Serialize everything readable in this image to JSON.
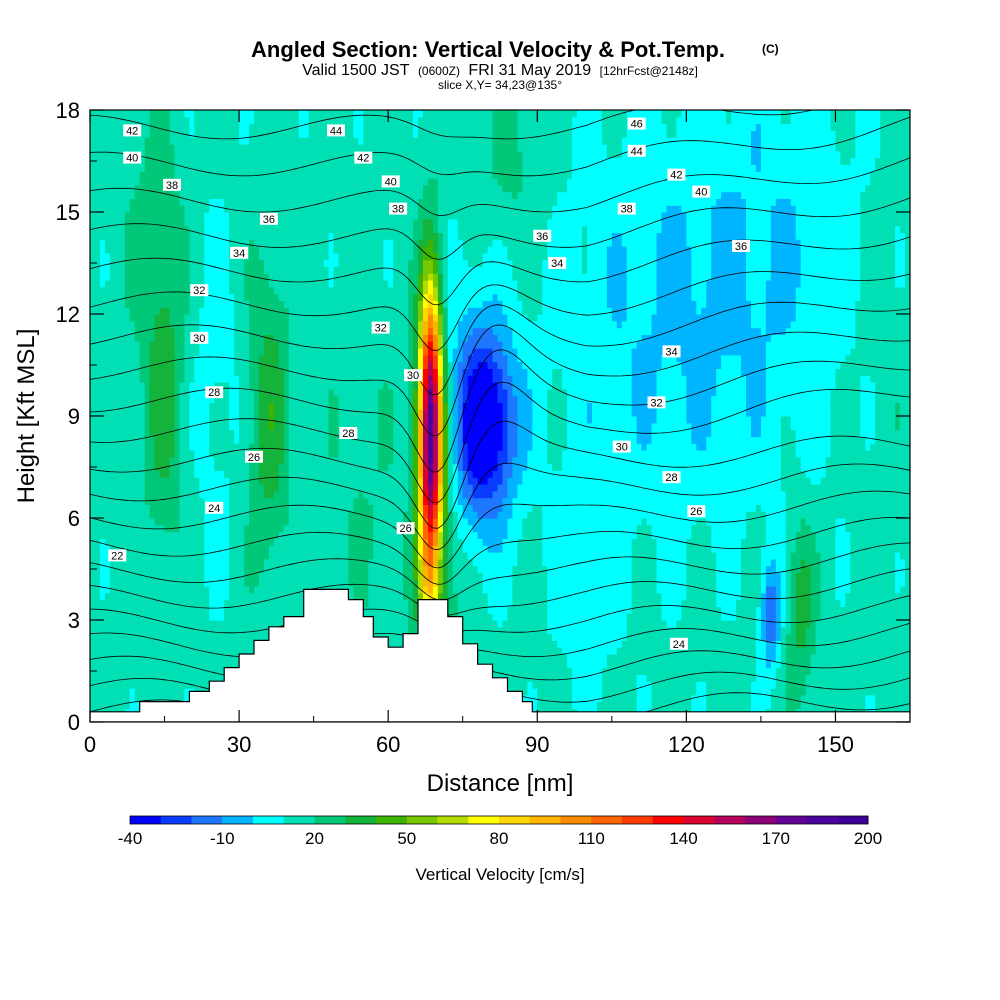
{
  "chart_data": {
    "type": "heatmap",
    "title": "Angled Section: Vertical Velocity & Pot.Temp.",
    "title_suffix": "(C)",
    "subtitle_parts": [
      "Valid 1500 JST",
      "(0600Z)",
      "FRI 31 May 2019",
      "[12hrFcst@2148z]"
    ],
    "slice_text": "slice X,Y= 34,23@135°",
    "xlabel": "Distance [nm]",
    "ylabel": "Height [Kft MSL]",
    "xlim": [
      0,
      165
    ],
    "ylim": [
      0,
      18
    ],
    "x_ticks": [
      0,
      30,
      60,
      90,
      120,
      150
    ],
    "y_ticks": [
      0,
      3,
      6,
      9,
      12,
      15,
      18
    ],
    "colorbar": {
      "label": "Vertical Velocity [cm/s]",
      "min": -40,
      "max": 200,
      "step": 10,
      "ticks": [
        -40,
        -10,
        20,
        50,
        80,
        110,
        140,
        170,
        200
      ],
      "colors": [
        "#0000ff",
        "#0a3cff",
        "#1e78ff",
        "#00b4ff",
        "#00ffff",
        "#00e0b4",
        "#00c878",
        "#14b43c",
        "#3cb400",
        "#78c800",
        "#b4dc00",
        "#ffff00",
        "#ffd700",
        "#ffb400",
        "#ff8c00",
        "#ff6400",
        "#ff3c00",
        "#ff0000",
        "#dc0032",
        "#b4005a",
        "#8c0078",
        "#640096",
        "#4b00a0",
        "#3c0096"
      ]
    },
    "terrain": [
      [
        0,
        0.3
      ],
      [
        10,
        0.3
      ],
      [
        10,
        0.6
      ],
      [
        20,
        0.6
      ],
      [
        20,
        0.9
      ],
      [
        24,
        0.9
      ],
      [
        24,
        1.2
      ],
      [
        27,
        1.2
      ],
      [
        27,
        1.6
      ],
      [
        30,
        1.6
      ],
      [
        30,
        2.0
      ],
      [
        33,
        2.0
      ],
      [
        33,
        2.4
      ],
      [
        36,
        2.4
      ],
      [
        36,
        2.8
      ],
      [
        39,
        2.8
      ],
      [
        39,
        3.1
      ],
      [
        43,
        3.1
      ],
      [
        43,
        3.9
      ],
      [
        52,
        3.9
      ],
      [
        52,
        3.6
      ],
      [
        55,
        3.6
      ],
      [
        55,
        3.1
      ],
      [
        57,
        3.1
      ],
      [
        57,
        2.5
      ],
      [
        60,
        2.5
      ],
      [
        60,
        2.2
      ],
      [
        63,
        2.2
      ],
      [
        63,
        2.6
      ],
      [
        66,
        2.6
      ],
      [
        66,
        3.6
      ],
      [
        72,
        3.6
      ],
      [
        72,
        3.1
      ],
      [
        75,
        3.1
      ],
      [
        75,
        2.3
      ],
      [
        78,
        2.3
      ],
      [
        78,
        1.7
      ],
      [
        81,
        1.7
      ],
      [
        81,
        1.3
      ],
      [
        84,
        1.3
      ],
      [
        84,
        0.9
      ],
      [
        87,
        0.9
      ],
      [
        87,
        0.6
      ],
      [
        89,
        0.6
      ],
      [
        89,
        0.3
      ],
      [
        165,
        0.3
      ]
    ],
    "velocity_base": 14,
    "velocity_features": [
      {
        "x": 68.5,
        "y": 8.6,
        "sx": 1.6,
        "sy": 2.9,
        "amp": 165
      },
      {
        "x": 68.0,
        "y": 4.2,
        "sx": 1.3,
        "sy": 0.7,
        "amp": 20
      },
      {
        "x": 70.0,
        "y": 5.5,
        "sx": 3.5,
        "sy": 4.5,
        "amp": 24
      },
      {
        "x": 80.0,
        "y": 8.7,
        "sx": 4.2,
        "sy": 1.8,
        "amp": -52
      },
      {
        "x": 75.0,
        "y": 9.0,
        "sx": 5.0,
        "sy": 3.5,
        "amp": -18
      },
      {
        "x": 15.0,
        "y": 9.5,
        "sx": 3.0,
        "sy": 3.0,
        "amp": 20
      },
      {
        "x": 13.0,
        "y": 14.5,
        "sx": 4.0,
        "sy": 2.5,
        "amp": 10
      },
      {
        "x": 36.0,
        "y": 9.0,
        "sx": 3.0,
        "sy": 3.2,
        "amp": 22
      },
      {
        "x": 143.0,
        "y": 3.4,
        "sx": 2.0,
        "sy": 1.8,
        "amp": 22
      },
      {
        "x": 137.0,
        "y": 3.2,
        "sx": 1.4,
        "sy": 1.2,
        "amp": -30
      },
      {
        "x": 115.0,
        "y": 11.5,
        "sx": 18.0,
        "sy": 4.5,
        "amp": -13
      },
      {
        "x": 140.0,
        "y": 14.0,
        "sx": 16.0,
        "sy": 4.0,
        "amp": -10
      },
      {
        "x": 85.0,
        "y": 16.5,
        "sx": 5.0,
        "sy": 2.0,
        "amp": 10
      },
      {
        "x": 25.0,
        "y": 10.0,
        "sx": 4.0,
        "sy": 4.0,
        "amp": -8
      },
      {
        "x": 55.0,
        "y": 7.0,
        "sx": 5.0,
        "sy": 3.0,
        "amp": 6
      },
      {
        "x": 100.0,
        "y": 4.0,
        "sx": 5.0,
        "sy": 2.5,
        "amp": -8
      },
      {
        "x": 160.0,
        "y": 12.0,
        "sx": 5.0,
        "sy": 4.0,
        "amp": 5
      }
    ],
    "theta_levels": [
      20,
      21,
      22,
      23,
      24,
      25,
      26,
      27,
      28,
      29,
      30,
      31,
      32,
      33,
      34,
      35,
      36,
      37,
      38,
      39,
      40,
      41,
      42,
      43,
      44,
      45,
      46,
      47
    ],
    "theta_labels": [
      {
        "text": "42",
        "x": 8.5,
        "y": 17.4
      },
      {
        "text": "40",
        "x": 8.5,
        "y": 16.6
      },
      {
        "text": "38",
        "x": 16.5,
        "y": 15.8
      },
      {
        "text": "36",
        "x": 36.0,
        "y": 14.8
      },
      {
        "text": "34",
        "x": 30.0,
        "y": 13.8
      },
      {
        "text": "32",
        "x": 22.0,
        "y": 12.7
      },
      {
        "text": "30",
        "x": 22.0,
        "y": 11.3
      },
      {
        "text": "28",
        "x": 25.0,
        "y": 9.7
      },
      {
        "text": "26",
        "x": 33.0,
        "y": 7.8
      },
      {
        "text": "24",
        "x": 25.0,
        "y": 6.3
      },
      {
        "text": "22",
        "x": 5.5,
        "y": 4.9
      },
      {
        "text": "44",
        "x": 49.5,
        "y": 17.4
      },
      {
        "text": "42",
        "x": 55.0,
        "y": 16.6
      },
      {
        "text": "40",
        "x": 60.5,
        "y": 15.9
      },
      {
        "text": "38",
        "x": 62.0,
        "y": 15.1
      },
      {
        "text": "32",
        "x": 58.5,
        "y": 11.6
      },
      {
        "text": "30",
        "x": 65.0,
        "y": 10.2
      },
      {
        "text": "28",
        "x": 52.0,
        "y": 8.5
      },
      {
        "text": "26",
        "x": 63.5,
        "y": 5.7
      },
      {
        "text": "46",
        "x": 110.0,
        "y": 17.6
      },
      {
        "text": "44",
        "x": 110.0,
        "y": 16.8
      },
      {
        "text": "42",
        "x": 118.0,
        "y": 16.1
      },
      {
        "text": "40",
        "x": 123.0,
        "y": 15.6
      },
      {
        "text": "38",
        "x": 108.0,
        "y": 15.1
      },
      {
        "text": "36",
        "x": 91.0,
        "y": 14.3
      },
      {
        "text": "34",
        "x": 94.0,
        "y": 13.5
      },
      {
        "text": "36",
        "x": 131.0,
        "y": 14.0
      },
      {
        "text": "34",
        "x": 117.0,
        "y": 10.9
      },
      {
        "text": "32",
        "x": 114.0,
        "y": 9.4
      },
      {
        "text": "30",
        "x": 107.0,
        "y": 8.1
      },
      {
        "text": "28",
        "x": 117.0,
        "y": 7.2
      },
      {
        "text": "26",
        "x": 122.0,
        "y": 6.2
      },
      {
        "text": "24",
        "x": 118.5,
        "y": 2.3
      }
    ]
  }
}
